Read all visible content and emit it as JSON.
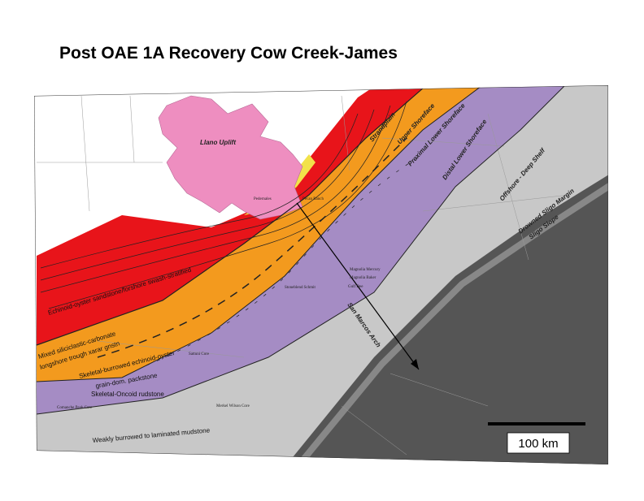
{
  "header": {
    "title": "Post OAE 1A Recovery Cow Creek-James"
  },
  "zones": [
    {
      "label": "Llano Uplift"
    },
    {
      "label": "Strandplain"
    },
    {
      "label": "Upper Shoreface"
    },
    {
      "label": "Proximal Lower Shoreface"
    },
    {
      "label": "Distal Lower Shoreface"
    },
    {
      "label": "Offshore - Deep Shelf"
    },
    {
      "label": "Drowned Sligo Margin"
    },
    {
      "label": "Sligo Slope"
    }
  ],
  "facies": [
    {
      "label": "Echinoid-oyster sandstone/forshore swash-stratified"
    },
    {
      "label": "Mixed siliciclastic-carbonate"
    },
    {
      "label": "longshore trough xarar gnstn"
    },
    {
      "label": "Skeletal-burrowed echinoid-oyster"
    },
    {
      "label": "grain-dom. packstone"
    },
    {
      "label": "Skeletal-Oncoid rudstone"
    },
    {
      "label": "Weakly burrowed to laminated mudstone"
    }
  ],
  "features": {
    "arch": "San Marcos Arch"
  },
  "wells": [
    {
      "label": "Pedernales"
    },
    {
      "label": "Pecan Ranch"
    },
    {
      "label": "Magnolia Mercury"
    },
    {
      "label": "Magnolia Baker"
    },
    {
      "label": "Gulf Dee"
    },
    {
      "label": "Stoneblend Schmit"
    },
    {
      "label": "Sattuni Core"
    },
    {
      "label": "Comanche Peak Core"
    },
    {
      "label": "Merkel Wilson Core"
    }
  ],
  "scale": {
    "label": "100 km"
  }
}
